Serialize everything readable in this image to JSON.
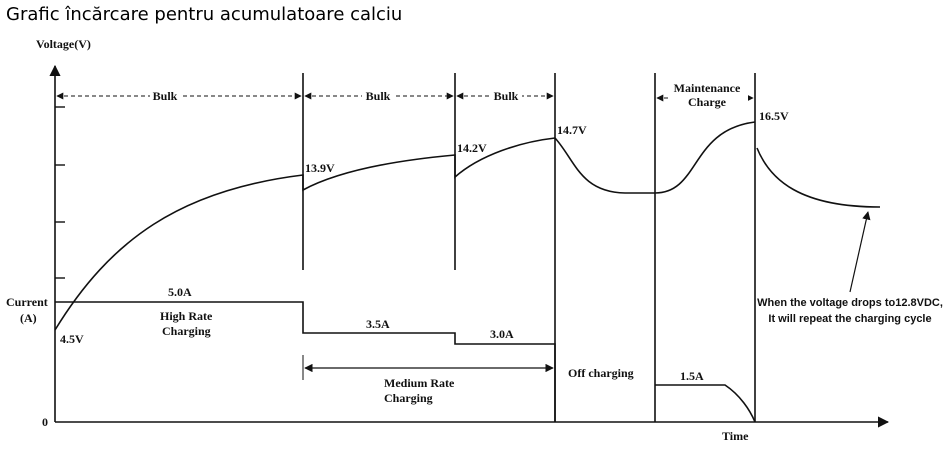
{
  "title": "Grafic încărcare pentru acumulatoare calciu",
  "axes": {
    "y_label": "Voltage(V)",
    "current_label": [
      "Current",
      "(A)"
    ],
    "origin": "0",
    "x_label": "Time"
  },
  "phases": {
    "bulk": [
      "Bulk",
      "Bulk",
      "Bulk"
    ],
    "maintenance": [
      "Maintenance",
      "Charge"
    ]
  },
  "voltage_labels": [
    "4.5V",
    "13.9V",
    "14.2V",
    "14.7V",
    "16.5V"
  ],
  "current_labels": [
    "5.0A",
    "3.5A",
    "3.0A",
    "1.5A"
  ],
  "regions": {
    "high_rate": [
      "High Rate",
      "Charging"
    ],
    "medium_rate": [
      "Medium Rate",
      "Charging"
    ],
    "off": "Off charging"
  },
  "note": [
    "When the voltage drops to12.8VDC,",
    "It will repeat the charging cycle"
  ]
}
